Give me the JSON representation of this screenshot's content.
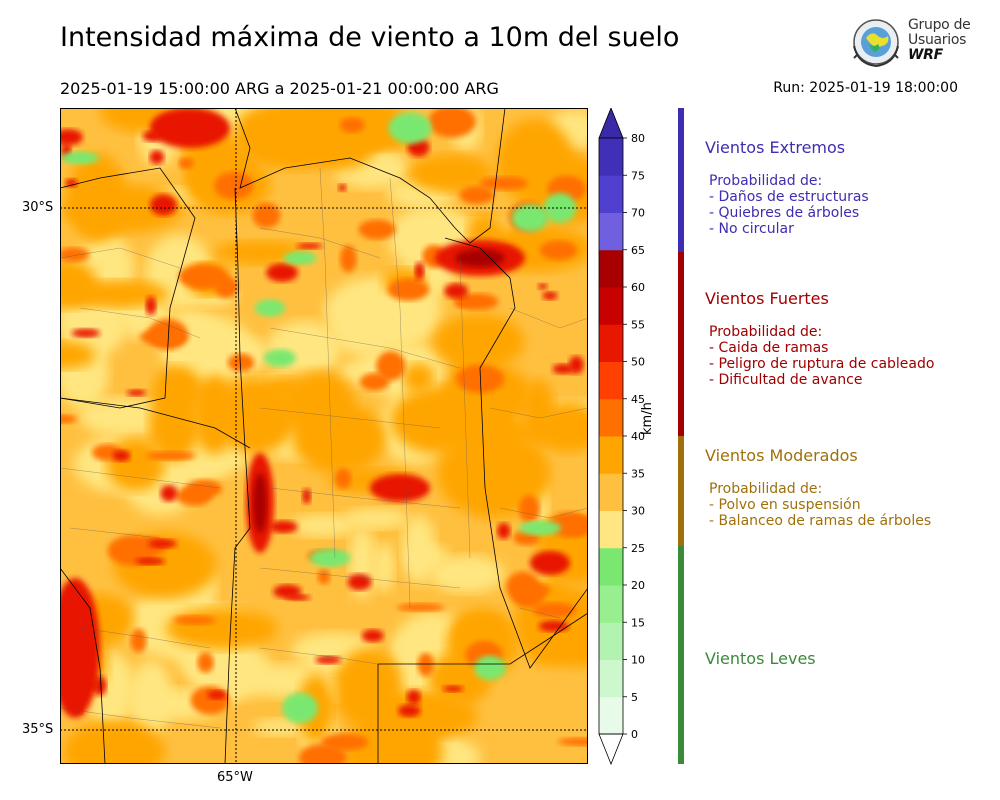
{
  "title": "Intensidad máxima de viento a 10m del suelo",
  "subtitle": "2025-01-19 15:00:00 ARG  a  2025-01-21 00:00:00 ARG",
  "run": "Run: 2025-01-19 18:00:00",
  "logo": {
    "line1": "Grupo de",
    "line2": "Usuarios",
    "line3": "WRF"
  },
  "axes": {
    "lat_labels": [
      "30°S",
      "35°S"
    ],
    "lon_labels": [
      "65°W"
    ]
  },
  "colorbar": {
    "unit": "km/h",
    "ticks": [
      "0",
      "5",
      "10",
      "15",
      "20",
      "25",
      "30",
      "35",
      "40",
      "45",
      "50",
      "55",
      "60",
      "65",
      "70",
      "75",
      "80"
    ],
    "colors": [
      "#e8fbe8",
      "#cdf7cd",
      "#b3f3b0",
      "#98ef90",
      "#7ae870",
      "#ffe680",
      "#ffc040",
      "#ffa500",
      "#ff7000",
      "#ff4000",
      "#e81800",
      "#c80000",
      "#a80000",
      "#7060e0",
      "#5040d0",
      "#4030b8"
    ],
    "extend_low_color": "#ffffff",
    "extend_high_color": "#3a2aa8"
  },
  "categories": [
    {
      "title": "Vientos Extremos",
      "color": "#3d2db0",
      "lines": [
        "Probabilidad de:",
        "- Daños de estructuras",
        "- Quiebres de árboles",
        "- No circular"
      ]
    },
    {
      "title": "Vientos Fuertes",
      "color": "#a00000",
      "lines": [
        "Probabilidad de:",
        "- Caida de ramas",
        "- Peligro de ruptura de cableado",
        "- Dificultad de avance"
      ]
    },
    {
      "title": "Vientos Moderados",
      "color": "#a0700a",
      "lines": [
        "Probabilidad de:",
        "- Polvo en suspensión",
        "- Balanceo de ramas de árboles"
      ]
    },
    {
      "title": "Vientos Leves",
      "color": "#3a8a3a",
      "lines": []
    }
  ]
}
